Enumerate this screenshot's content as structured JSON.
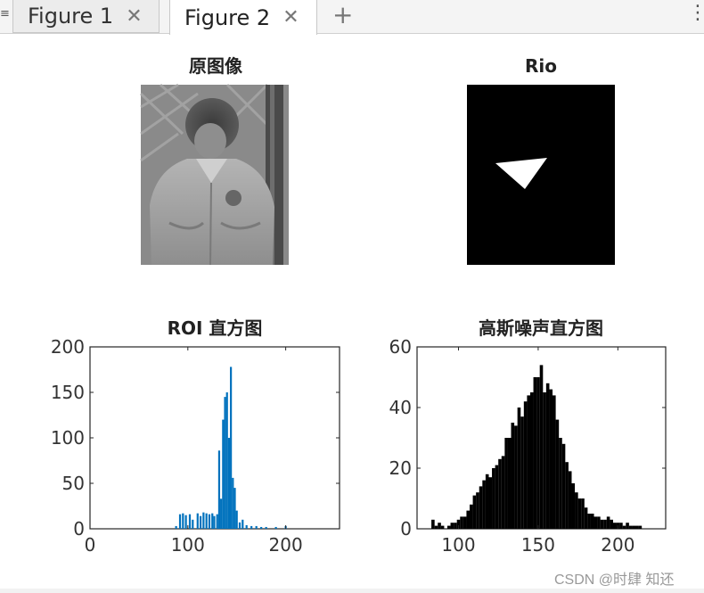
{
  "tabs": [
    {
      "label": "Figure 1",
      "close_icon": "close-icon",
      "active": false
    },
    {
      "label": "Figure 2",
      "close_icon": "close-icon",
      "active": true
    }
  ],
  "add_tab_icon": "plus-icon",
  "menu_icon": "kebab-menu-icon",
  "panels": {
    "original_title": "原图像",
    "rio_title": "Rio"
  },
  "chart_data": [
    {
      "type": "bar",
      "title": "ROI 直方图",
      "xlabel": "",
      "ylabel": "",
      "xlim": [
        0,
        255
      ],
      "ylim": [
        0,
        200
      ],
      "xticks": [
        "0",
        "100",
        "200"
      ],
      "yticks": [
        "0",
        "50",
        "100",
        "150",
        "200"
      ],
      "color": "#0072bd",
      "grid": false,
      "x": [
        88,
        92,
        95,
        98,
        102,
        105,
        110,
        113,
        116,
        119,
        122,
        125,
        127,
        130,
        132,
        134,
        136,
        138,
        140,
        142,
        144,
        146,
        148,
        150,
        153,
        156,
        160,
        165,
        170,
        175,
        180,
        190,
        200
      ],
      "values": [
        3,
        16,
        17,
        15,
        16,
        10,
        17,
        14,
        18,
        17,
        16,
        17,
        14,
        16,
        86,
        33,
        120,
        145,
        150,
        100,
        178,
        56,
        45,
        20,
        7,
        10,
        4,
        3,
        3,
        2,
        2,
        2,
        3
      ]
    },
    {
      "type": "bar",
      "title": "高斯噪声直方图",
      "xlabel": "",
      "ylabel": "",
      "xlim": [
        74,
        230
      ],
      "ylim": [
        0,
        60
      ],
      "xticks": [
        "100",
        "150",
        "200"
      ],
      "yticks": [
        "0",
        "20",
        "40",
        "60"
      ],
      "color": "#000000",
      "grid": false,
      "x": [
        84,
        86,
        88,
        90,
        92,
        94,
        96,
        98,
        100,
        102,
        104,
        106,
        108,
        110,
        112,
        114,
        116,
        118,
        120,
        122,
        124,
        126,
        128,
        130,
        132,
        134,
        136,
        138,
        140,
        142,
        144,
        146,
        148,
        150,
        152,
        154,
        156,
        158,
        160,
        162,
        164,
        166,
        168,
        170,
        172,
        174,
        176,
        178,
        180,
        182,
        184,
        186,
        188,
        190,
        192,
        194,
        196,
        198,
        200,
        202,
        204,
        206,
        208,
        210,
        212,
        214,
        216
      ],
      "values": [
        3,
        1,
        2,
        1,
        0,
        1,
        2,
        2,
        3,
        4,
        4,
        6,
        8,
        11,
        12,
        14,
        16,
        18,
        17,
        20,
        21,
        23,
        24,
        30,
        30,
        35,
        34,
        40,
        37,
        42,
        44,
        45,
        50,
        50,
        54,
        45,
        48,
        46,
        44,
        36,
        30,
        28,
        22,
        19,
        15,
        12,
        10,
        10,
        7,
        5,
        5,
        4,
        4,
        3,
        3,
        4,
        3,
        2,
        2,
        2,
        1,
        2,
        1,
        1,
        1,
        1,
        0
      ]
    }
  ],
  "watermark": "CSDN @时肆 知还"
}
